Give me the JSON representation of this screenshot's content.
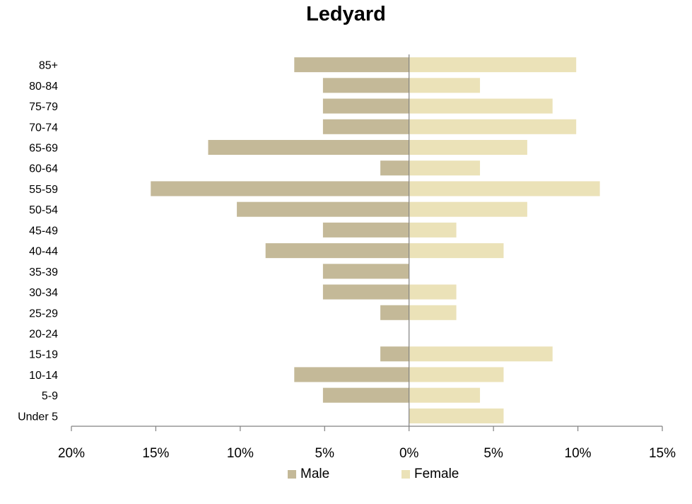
{
  "chart_data": {
    "type": "bar",
    "orientation": "horizontal",
    "layout": "population-pyramid",
    "title": "Ledyard",
    "categories": [
      "Under 5",
      "5-9",
      "10-14",
      "15-19",
      "20-24",
      "25-29",
      "30-34",
      "35-39",
      "40-44",
      "45-49",
      "50-54",
      "55-59",
      "60-64",
      "65-69",
      "70-74",
      "75-79",
      "80-84",
      "85+"
    ],
    "series": [
      {
        "name": "Male",
        "color": "#c4b998",
        "values": [
          0,
          5.1,
          6.8,
          1.7,
          0,
          1.7,
          5.1,
          5.1,
          8.5,
          5.1,
          10.2,
          15.3,
          1.7,
          11.9,
          5.1,
          5.1,
          5.1,
          6.8
        ]
      },
      {
        "name": "Female",
        "color": "#ebe2b8",
        "values": [
          5.6,
          4.2,
          5.6,
          8.5,
          0,
          2.8,
          2.8,
          0,
          5.6,
          2.8,
          7.0,
          11.3,
          4.2,
          7.0,
          9.9,
          8.5,
          4.2,
          9.9
        ]
      }
    ],
    "x_axis": {
      "range_percent": [
        -20,
        15
      ],
      "ticks": [
        -20,
        -15,
        -10,
        -5,
        0,
        5,
        10,
        15
      ],
      "tick_labels": [
        "20%",
        "15%",
        "10%",
        "5%",
        "0%",
        "5%",
        "10%",
        "15%"
      ]
    },
    "grid": false,
    "legend_position": "bottom"
  }
}
